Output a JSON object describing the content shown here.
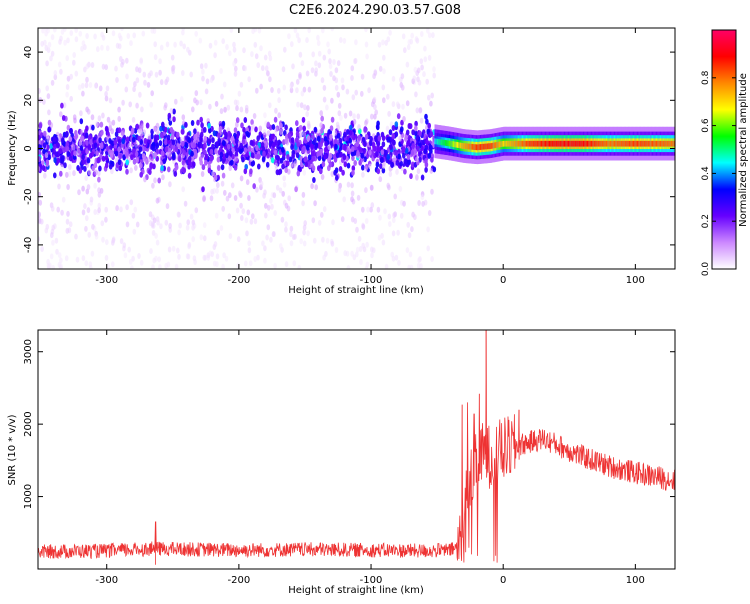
{
  "title": "C2E6.2024.290.03.57.G08",
  "chart_data": [
    {
      "type": "heatmap",
      "xlabel": "Height of straight line (km)",
      "ylabel": "Frequency (Hz)",
      "xlim": [
        -352,
        130
      ],
      "ylim": [
        -50,
        50
      ],
      "x_ticks": [
        -300,
        -200,
        -100,
        0,
        100
      ],
      "y_ticks": [
        -40,
        -20,
        0,
        20,
        40
      ],
      "grid": false,
      "colorbar": {
        "label": "Normalized spectral amplitude",
        "range": [
          0.0,
          1.0
        ],
        "ticks": [
          "0.0",
          "0.2",
          "0.4",
          "0.6",
          "0.8"
        ],
        "colors": [
          "#ffffff",
          "#cc88ff",
          "#6600ff",
          "#0000ff",
          "#00ffff",
          "#00ff00",
          "#ffff00",
          "#ff8800",
          "#ff0000",
          "#ff0066"
        ]
      },
      "series": [
        {
          "description_region": "noise",
          "x_range": [
            -352,
            -52
          ],
          "frequency_center": 0,
          "frequency_spread": 10,
          "amplitude": 0.15
        },
        {
          "description_region": "signal",
          "x": [
            -52,
            -40,
            -30,
            -20,
            -10,
            0,
            20,
            40,
            60,
            80,
            100,
            130
          ],
          "frequency": [
            3,
            2,
            1,
            0.5,
            1,
            2,
            2,
            2,
            2,
            2,
            2,
            2
          ],
          "amplitude": [
            0.45,
            0.6,
            0.75,
            0.85,
            0.85,
            0.7,
            0.85,
            0.9,
            0.9,
            0.8,
            0.85,
            0.8
          ]
        }
      ]
    },
    {
      "type": "line",
      "xlabel": "Height of straight line (km)",
      "ylabel": "SNR (10 * v/v)",
      "xlim": [
        -352,
        130
      ],
      "ylim": [
        0,
        3300
      ],
      "x_ticks": [
        -300,
        -200,
        -100,
        0,
        100
      ],
      "y_ticks": [
        1000,
        2000,
        3000
      ],
      "grid": false,
      "color": "#ee3333",
      "envelope": {
        "x": [
          -352,
          -300,
          -265,
          -200,
          -150,
          -100,
          -60,
          -40,
          -33,
          -30,
          -25,
          -20,
          -15,
          -10,
          0,
          20,
          30,
          40,
          60,
          80,
          100,
          130
        ],
        "y": [
          220,
          230,
          260,
          240,
          250,
          240,
          230,
          240,
          300,
          800,
          1200,
          1450,
          1600,
          1550,
          1650,
          1750,
          1800,
          1720,
          1550,
          1420,
          1330,
          1220
        ]
      },
      "spikes": [
        {
          "x": -31,
          "y": 2270
        },
        {
          "x": -27,
          "y": 2300
        },
        {
          "x": -22,
          "y": 2140
        },
        {
          "x": -18,
          "y": 2420
        },
        {
          "x": -13,
          "y": 3300
        },
        {
          "x": 12,
          "y": 2200
        },
        {
          "x": -263,
          "y": 650
        }
      ]
    }
  ]
}
